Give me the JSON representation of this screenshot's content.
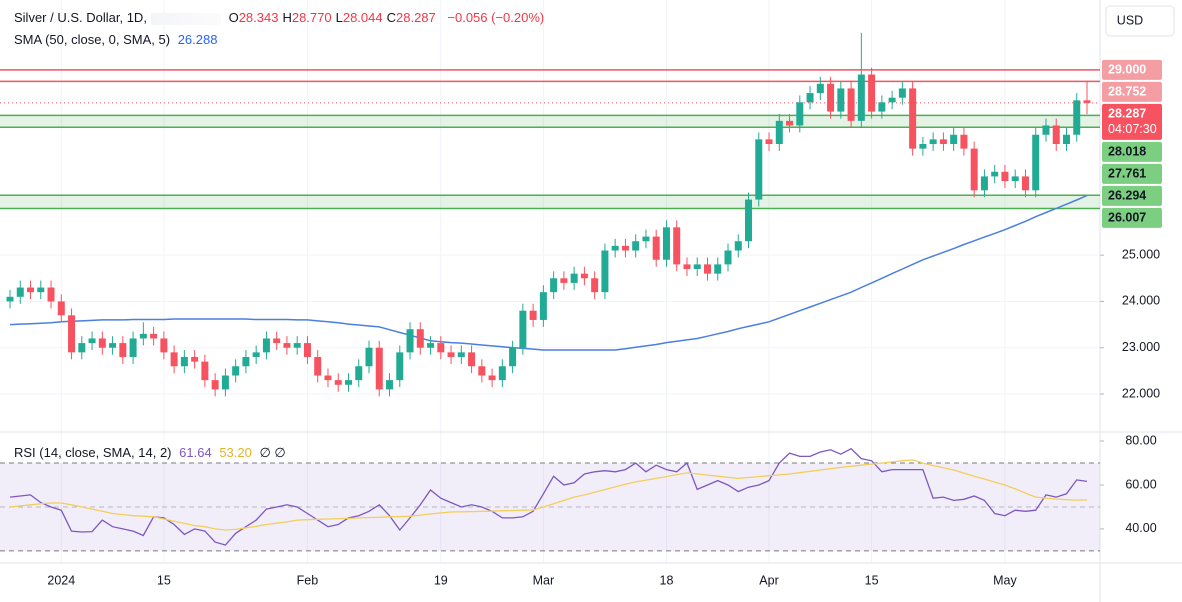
{
  "chart_data": [
    {
      "type": "candlestick",
      "title": "Silver / U.S. Dollar, 1D,",
      "ohlc": [
        {
          "key": "O",
          "value": "28.343"
        },
        {
          "key": "H",
          "value": "28.770"
        },
        {
          "key": "L",
          "value": "28.044"
        },
        {
          "key": "C",
          "value": "28.287"
        }
      ],
      "change": "−0.056 (−0.20%)",
      "currency": "USD",
      "countdown": "04:07:30",
      "up_color": "#22ab94",
      "down_color": "#f7525f",
      "categories": [
        null,
        null,
        null,
        null,
        null,
        "2024",
        null,
        null,
        null,
        null,
        null,
        null,
        null,
        null,
        null,
        "15",
        null,
        null,
        null,
        null,
        null,
        null,
        null,
        null,
        null,
        null,
        null,
        null,
        null,
        "Feb",
        null,
        null,
        null,
        null,
        null,
        null,
        null,
        null,
        null,
        null,
        null,
        null,
        "19",
        null,
        null,
        null,
        null,
        null,
        null,
        null,
        null,
        null,
        "Mar",
        null,
        null,
        null,
        null,
        null,
        null,
        null,
        null,
        null,
        null,
        null,
        "18",
        null,
        null,
        null,
        null,
        null,
        null,
        null,
        null,
        null,
        "Apr",
        null,
        null,
        null,
        null,
        null,
        null,
        null,
        null,
        null,
        "15",
        null,
        null,
        null,
        null,
        null,
        null,
        null,
        null,
        null,
        null,
        null,
        null,
        "May",
        null,
        null,
        null,
        null,
        null,
        null,
        null,
        null
      ],
      "open": [
        24.0,
        24.1,
        24.3,
        24.2,
        24.3,
        24.0,
        23.7,
        22.9,
        23.1,
        23.2,
        23.0,
        23.1,
        22.8,
        23.2,
        23.3,
        23.2,
        22.9,
        22.6,
        22.8,
        22.7,
        22.3,
        22.1,
        22.4,
        22.6,
        22.8,
        22.9,
        23.2,
        23.1,
        23.0,
        23.1,
        22.8,
        22.4,
        22.3,
        22.2,
        22.3,
        22.6,
        23.0,
        22.1,
        22.3,
        22.9,
        23.4,
        23.0,
        23.1,
        22.9,
        22.8,
        22.9,
        22.6,
        22.4,
        22.3,
        22.6,
        23.0,
        23.8,
        23.6,
        24.2,
        24.5,
        24.4,
        24.6,
        24.5,
        24.2,
        25.1,
        25.2,
        25.1,
        25.3,
        25.4,
        24.9,
        25.6,
        24.8,
        24.7,
        24.8,
        24.6,
        24.8,
        25.1,
        25.3,
        26.2,
        27.5,
        27.4,
        27.9,
        27.8,
        28.3,
        28.5,
        28.7,
        28.1,
        28.6,
        27.9,
        28.9,
        28.1,
        28.3,
        28.4,
        28.6,
        27.3,
        27.4,
        27.5,
        27.4,
        27.6,
        27.3,
        26.4,
        26.7,
        26.8,
        26.6,
        26.7,
        26.4,
        27.6,
        27.8,
        27.4,
        27.6,
        28.343
      ],
      "high": [
        24.25,
        24.45,
        24.45,
        24.45,
        24.45,
        24.15,
        23.85,
        23.25,
        23.35,
        23.35,
        23.25,
        23.25,
        23.35,
        23.55,
        23.45,
        23.35,
        23.05,
        22.95,
        22.95,
        22.85,
        22.45,
        22.55,
        22.75,
        22.95,
        23.05,
        23.35,
        23.35,
        23.25,
        23.25,
        23.25,
        22.95,
        22.55,
        22.45,
        22.45,
        22.75,
        23.15,
        23.15,
        22.45,
        23.05,
        23.55,
        23.55,
        23.25,
        23.25,
        23.05,
        23.05,
        23.05,
        22.75,
        22.55,
        22.75,
        23.15,
        23.95,
        23.95,
        24.35,
        24.65,
        24.65,
        24.75,
        24.75,
        24.65,
        25.25,
        25.35,
        25.35,
        25.45,
        25.55,
        25.55,
        25.75,
        25.75,
        24.95,
        24.95,
        24.95,
        24.95,
        25.25,
        25.45,
        26.35,
        27.65,
        27.65,
        28.05,
        28.05,
        28.45,
        28.65,
        28.85,
        28.85,
        28.75,
        28.75,
        29.8,
        29.05,
        28.45,
        28.55,
        28.75,
        28.75,
        27.55,
        27.65,
        27.65,
        27.75,
        27.75,
        27.45,
        26.85,
        26.95,
        26.95,
        26.85,
        26.85,
        27.75,
        27.95,
        27.95,
        27.75,
        28.5,
        28.77
      ],
      "low": [
        23.85,
        23.95,
        24.05,
        24.05,
        23.85,
        23.55,
        22.75,
        22.75,
        22.95,
        22.85,
        22.85,
        22.65,
        22.65,
        23.05,
        23.05,
        22.75,
        22.45,
        22.45,
        22.55,
        22.15,
        21.95,
        21.95,
        22.25,
        22.45,
        22.65,
        22.75,
        22.95,
        22.85,
        22.85,
        22.65,
        22.25,
        22.15,
        22.05,
        22.05,
        22.15,
        22.45,
        21.95,
        21.95,
        22.15,
        22.75,
        22.85,
        22.85,
        22.75,
        22.65,
        22.65,
        22.45,
        22.25,
        22.15,
        22.15,
        22.45,
        22.85,
        23.45,
        23.45,
        24.05,
        24.25,
        24.25,
        24.35,
        24.05,
        24.05,
        24.95,
        24.95,
        24.95,
        25.15,
        24.75,
        24.75,
        24.65,
        24.55,
        24.55,
        24.45,
        24.45,
        24.65,
        24.95,
        25.15,
        26.05,
        27.25,
        27.25,
        27.65,
        27.65,
        28.15,
        28.35,
        27.95,
        27.95,
        27.75,
        27.75,
        27.95,
        27.95,
        28.15,
        28.25,
        27.15,
        27.15,
        27.25,
        27.25,
        27.25,
        27.15,
        26.25,
        26.25,
        26.55,
        26.45,
        26.45,
        26.25,
        26.25,
        27.45,
        27.25,
        27.25,
        27.45,
        28.044
      ],
      "close": [
        24.1,
        24.3,
        24.2,
        24.3,
        24.0,
        23.7,
        22.9,
        23.1,
        23.2,
        23.0,
        23.1,
        22.8,
        23.2,
        23.3,
        23.2,
        22.9,
        22.6,
        22.8,
        22.7,
        22.3,
        22.1,
        22.4,
        22.6,
        22.8,
        22.9,
        23.2,
        23.1,
        23.0,
        23.1,
        22.8,
        22.4,
        22.3,
        22.2,
        22.3,
        22.6,
        23.0,
        22.1,
        22.3,
        22.9,
        23.4,
        23.0,
        23.1,
        22.9,
        22.8,
        22.9,
        22.6,
        22.4,
        22.3,
        22.6,
        23.0,
        23.8,
        23.6,
        24.2,
        24.5,
        24.4,
        24.6,
        24.5,
        24.2,
        25.1,
        25.2,
        25.1,
        25.3,
        25.4,
        24.9,
        25.6,
        24.8,
        24.7,
        24.8,
        24.6,
        24.8,
        25.1,
        25.3,
        26.2,
        27.5,
        27.4,
        27.9,
        27.8,
        28.3,
        28.5,
        28.7,
        28.1,
        28.6,
        27.9,
        28.9,
        28.1,
        28.3,
        28.4,
        28.6,
        27.3,
        27.4,
        27.5,
        27.4,
        27.6,
        27.3,
        26.4,
        26.7,
        26.8,
        26.6,
        26.7,
        26.4,
        27.6,
        27.8,
        27.4,
        27.6,
        28.343,
        28.287
      ],
      "sma": {
        "name": "SMA (50, close, 0, SMA, 5)",
        "color": "#4a7fe0",
        "values": [
          23.5,
          23.51,
          23.52,
          23.53,
          23.54,
          23.56,
          23.57,
          23.58,
          23.59,
          23.6,
          23.6,
          23.6,
          23.61,
          23.61,
          23.61,
          23.61,
          23.62,
          23.62,
          23.62,
          23.62,
          23.62,
          23.62,
          23.62,
          23.62,
          23.61,
          23.61,
          23.61,
          23.61,
          23.6,
          23.6,
          23.58,
          23.56,
          23.54,
          23.51,
          23.49,
          23.47,
          23.45,
          23.39,
          23.33,
          23.27,
          23.21,
          23.15,
          23.13,
          23.11,
          23.1,
          23.08,
          23.06,
          23.04,
          23.02,
          23.0,
          22.99,
          22.97,
          22.95,
          22.95,
          22.95,
          22.95,
          22.95,
          22.95,
          22.95,
          22.95,
          22.98,
          23.01,
          23.04,
          23.07,
          23.11,
          23.14,
          23.17,
          23.2,
          23.25,
          23.3,
          23.35,
          23.41,
          23.46,
          23.51,
          23.56,
          23.64,
          23.72,
          23.8,
          23.88,
          23.96,
          24.04,
          24.12,
          24.2,
          24.3,
          24.4,
          24.5,
          24.6,
          24.7,
          24.8,
          24.9,
          24.98,
          25.06,
          25.14,
          25.23,
          25.31,
          25.39,
          25.47,
          25.55,
          25.64,
          25.73,
          25.83,
          25.92,
          26.01,
          26.1,
          26.19,
          26.288
        ]
      },
      "levels": [
        {
          "value": 29.0,
          "label": "29.000"
        },
        {
          "value": 28.752,
          "label": "28.752"
        }
      ],
      "level_color": "#f7525f",
      "zones": [
        {
          "top": {
            "value": 28.018,
            "label": "28.018"
          },
          "bottom": {
            "value": 27.761,
            "label": "27.761"
          }
        },
        {
          "top": {
            "value": 26.294,
            "label": "26.294"
          },
          "bottom": {
            "value": 26.007,
            "label": "26.007"
          }
        }
      ],
      "zone_color": "#4caf50",
      "ylim": [
        21.18,
        30.51
      ],
      "yticks": [
        {
          "value": 25,
          "label": "25.000"
        },
        {
          "value": 24,
          "label": "24.000"
        },
        {
          "value": 23,
          "label": "23.000"
        },
        {
          "value": 22,
          "label": "22.000"
        }
      ],
      "grid": true
    },
    {
      "type": "rsi",
      "title": "RSI (14, close, SMA, 14, 2)",
      "flags": "∅ ∅",
      "series": [
        {
          "color": "#7e57c2",
          "last_label": "61.64",
          "values": [
            54.5,
            55,
            55.5,
            52,
            50,
            48.5,
            39,
            38.6,
            38.8,
            44,
            41,
            40,
            39,
            37,
            45.5,
            45,
            42,
            37.5,
            40,
            39,
            34,
            32.7,
            38,
            41,
            44,
            49,
            50,
            51,
            50,
            47,
            44,
            41,
            42,
            45,
            46,
            48,
            51,
            46,
            39.5,
            45,
            51,
            57.7,
            54,
            52,
            50,
            51,
            50,
            48,
            45,
            45,
            45.5,
            48,
            56,
            64,
            60,
            61,
            65,
            66,
            66.5,
            66,
            67,
            70,
            66,
            69,
            67,
            66,
            70,
            58,
            60,
            62,
            60,
            57,
            59,
            60,
            62,
            70,
            74.5,
            73,
            73,
            75,
            76,
            74,
            76.5,
            72,
            71,
            66,
            67,
            67,
            67,
            67,
            54,
            54.5,
            53,
            53.5,
            55,
            53,
            47,
            46,
            48.5,
            48,
            48.5,
            55.5,
            54.5,
            56,
            62.3,
            61.64
          ]
        },
        {
          "color": "#f2cf5b",
          "last_label": "53.20",
          "values": [
            50,
            50.5,
            51,
            51.5,
            51.8,
            51.8,
            51,
            50,
            49,
            48,
            47,
            46.5,
            46,
            45.8,
            45.5,
            44.5,
            43.5,
            42.5,
            41.5,
            41,
            40,
            39.5,
            39.8,
            40.5,
            41.2,
            42,
            42.6,
            43.2,
            44,
            44.2,
            44.4,
            44.5,
            44.7,
            44.8,
            45,
            45.2,
            45.3,
            45.5,
            45.6,
            45.8,
            46.3,
            46.8,
            47.3,
            47.7,
            47.8,
            47.9,
            48,
            48.1,
            48.3,
            48.4,
            48.5,
            48.6,
            50,
            51.5,
            53,
            54.5,
            55.5,
            56.7,
            57.9,
            59.1,
            60.3,
            61.4,
            62.2,
            63,
            63.8,
            64.7,
            65.5,
            65,
            64.5,
            64,
            63.5,
            63,
            63.4,
            63.8,
            64.2,
            64.6,
            65,
            65.6,
            66.2,
            66.8,
            67.4,
            68,
            68.5,
            69,
            69.5,
            70,
            70.5,
            71,
            71.4,
            70,
            68.8,
            67.8,
            66.8,
            65.4,
            64,
            62.7,
            61.3,
            60,
            58.2,
            56.3,
            54.5,
            54,
            53.6,
            53.3,
            53.1,
            53.2
          ]
        }
      ],
      "upper_band": 70,
      "middle_band": 50,
      "lower_band": 30,
      "ylim": [
        24.5,
        84.1
      ],
      "yticks": [
        {
          "value": 80,
          "label": "80.00"
        },
        {
          "value": 60,
          "label": "60.00"
        },
        {
          "value": 40,
          "label": "40.00"
        }
      ]
    }
  ]
}
